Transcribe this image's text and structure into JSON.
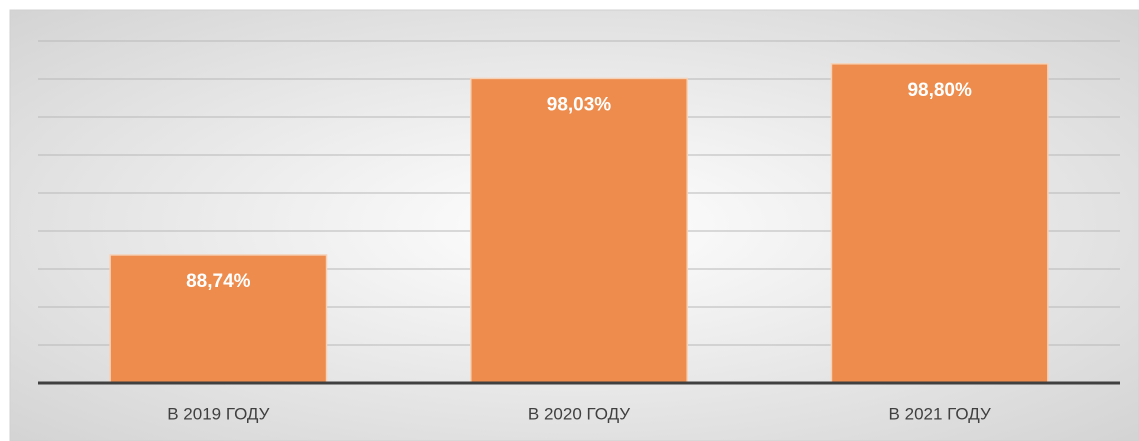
{
  "chart_data": {
    "type": "bar",
    "categories": [
      "В 2019 ГОДУ",
      "В 2020 ГОДУ",
      "В 2021 ГОДУ"
    ],
    "values": [
      88.74,
      98.03,
      98.8
    ],
    "value_labels": [
      "88,74%",
      "98,03%",
      "98,80%"
    ],
    "color": "#ed8c4c",
    "ylim": [
      82,
      100
    ],
    "yticks": [
      82,
      84,
      86,
      88,
      90,
      92,
      94,
      96,
      98,
      100
    ],
    "grid": true
  }
}
